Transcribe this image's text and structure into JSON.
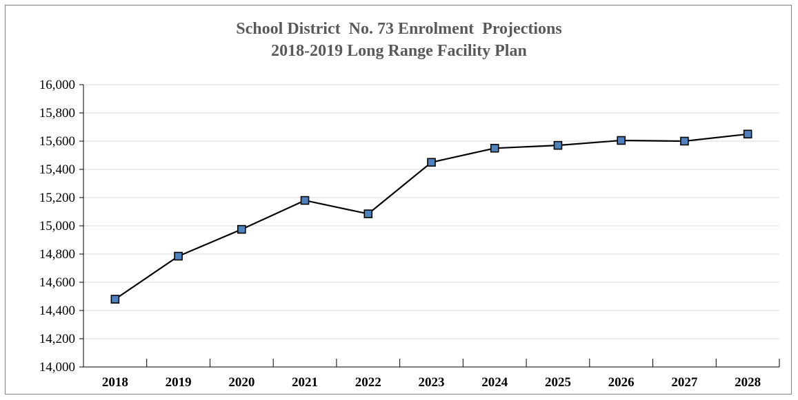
{
  "chart_data": {
    "type": "line",
    "title": "School District  No. 73 Enrolment  Projections",
    "subtitle": "2018-2019 Long Range Facility Plan",
    "categories": [
      "2018",
      "2019",
      "2020",
      "2021",
      "2022",
      "2023",
      "2024",
      "2025",
      "2026",
      "2027",
      "2028"
    ],
    "values": [
      14480,
      14785,
      14975,
      15180,
      15085,
      15450,
      15550,
      15570,
      15605,
      15600,
      15650
    ],
    "ylim": [
      14000,
      16000
    ],
    "yticks": [
      "14,000",
      "14,200",
      "14,400",
      "14,600",
      "14,800",
      "15,000",
      "15,200",
      "15,400",
      "15,600",
      "15,800",
      "16,000"
    ],
    "ytick_values": [
      14000,
      14200,
      14400,
      14600,
      14800,
      15000,
      15200,
      15400,
      15600,
      15800,
      16000
    ],
    "xlabel": "",
    "ylabel": "",
    "grid": true,
    "legend": "none",
    "colors": {
      "line": "#000000",
      "marker_fill": "#4f81bd",
      "marker_edge": "#000000",
      "grid": "#d9d9d9",
      "title": "#595959"
    }
  }
}
